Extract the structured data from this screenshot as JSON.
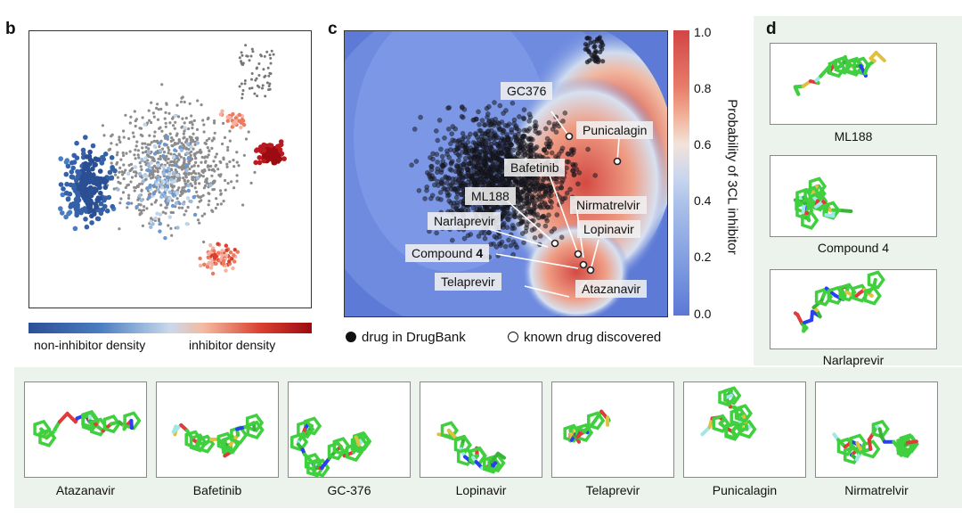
{
  "panels": {
    "b": "b",
    "c": "c",
    "d": "d"
  },
  "panel_b": {
    "legend_left": "non-inhibitor density",
    "legend_right": "inhibitor density",
    "colors": {
      "non_inhibitor": "#2f5d9e",
      "inhibitor": "#b0101a",
      "background_points": "#8a8a8a"
    }
  },
  "panel_c": {
    "colorbar_title": "Probability of 3CL inhibitor",
    "colorbar_ticks": [
      "1.0",
      "0.8",
      "0.6",
      "0.4",
      "0.2",
      "0.0"
    ],
    "labels": {
      "gc376": "GC376",
      "punicalagin": "Punicalagin",
      "bafetinib": "Bafetinib",
      "nirmatrelvir": "Nirmatrelvir",
      "ml188": "ML188",
      "lopinavir": "Lopinavir",
      "narlaprevir": "Narlaprevir",
      "compound4_a": "Compound ",
      "compound4_b": "4",
      "telaprevir": "Telaprevir",
      "atazanavir": "Atazanavir"
    },
    "legend": {
      "filled": "drug in DrugBank",
      "open": "known drug discovered"
    },
    "colors": {
      "low": "#5b77d4",
      "high": "#d6484a"
    }
  },
  "panel_d": {
    "structures": [
      "ML188",
      "Compound  4",
      "Narlaprevir"
    ]
  },
  "bottom_row": {
    "structures": [
      "Atazanavir",
      "Bafetinib",
      "GC-376",
      "Lopinavir",
      "Telaprevir",
      "Punicalagin",
      "Nirmatrelvir"
    ]
  }
}
